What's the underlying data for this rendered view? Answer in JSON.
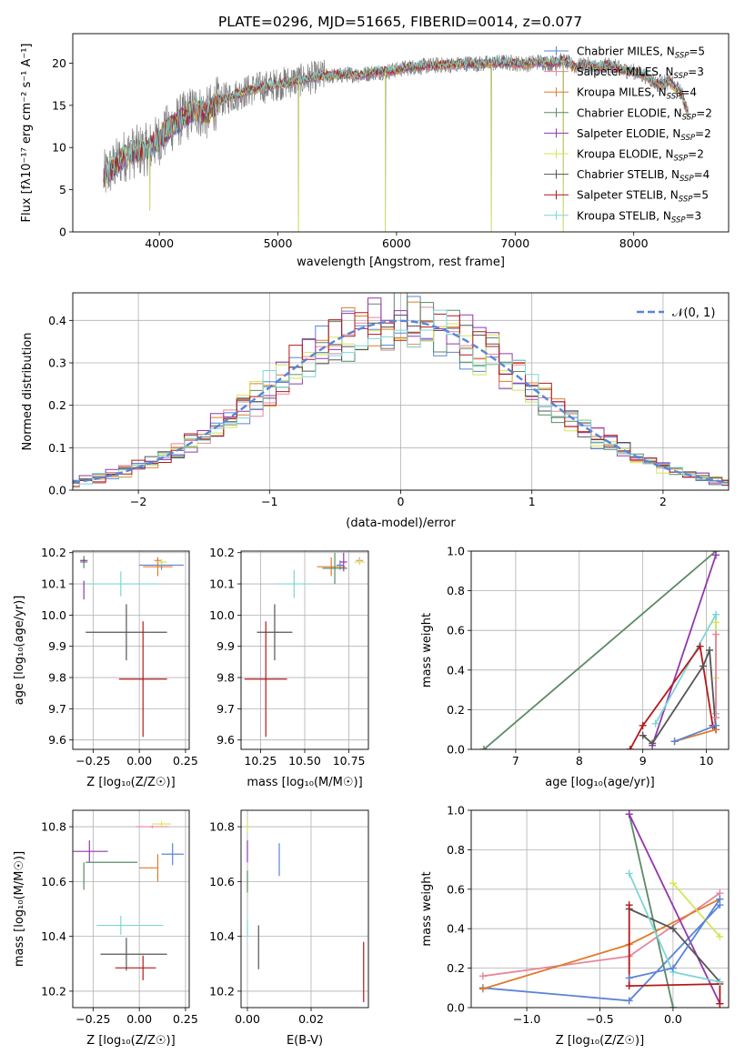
{
  "figure": {
    "title": "PLATE=0296, MJD=51665, FIBERID=0014, z=0.077"
  },
  "colors": {
    "Chabrier MILES": "#5b84d6",
    "Salpeter MILES": "#e5879b",
    "Kroupa MILES": "#e07b2c",
    "Chabrier ELODIE": "#5a8a66",
    "Salpeter ELODIE": "#9437ad",
    "Kroupa ELODIE": "#d4e557",
    "Chabrier STELIB": "#555555",
    "Salpeter STELIB": "#b4191a",
    "Kroupa STELIB": "#7dd6d6",
    "grid": "#b0b0b0",
    "data": "#808080"
  },
  "chart_data": [
    {
      "id": "spectrum",
      "type": "line",
      "xlabel": "wavelength [Angstrom, rest frame]",
      "ylabel": "Flux [fλ10⁻¹⁷ erg cm⁻² s⁻¹ A⁻¹]",
      "xlim": [
        3270,
        8800
      ],
      "ylim": [
        0,
        23.5
      ],
      "xticks": [
        4000,
        5000,
        6000,
        7000,
        8000
      ],
      "yticks": [
        0,
        5,
        10,
        15,
        20
      ],
      "legend_position": "right",
      "legend": [
        {
          "name": "Chabrier MILES",
          "label": "Chabrier MILES, N",
          "sub": "SSP",
          "tail": "=5"
        },
        {
          "name": "Salpeter MILES",
          "label": "Salpeter MILES, N",
          "sub": "SSP",
          "tail": "=3"
        },
        {
          "name": "Kroupa MILES",
          "label": "Kroupa MILES, N",
          "sub": "SSP",
          "tail": "=4"
        },
        {
          "name": "Chabrier ELODIE",
          "label": "Chabrier ELODIE, N",
          "sub": "SSP",
          "tail": "=2"
        },
        {
          "name": "Salpeter ELODIE",
          "label": "Salpeter ELODIE, N",
          "sub": "SSP",
          "tail": "=2"
        },
        {
          "name": "Kroupa ELODIE",
          "label": "Kroupa ELODIE, N",
          "sub": "SSP",
          "tail": "=2"
        },
        {
          "name": "Chabrier STELIB",
          "label": "Chabrier STELIB, N",
          "sub": "SSP",
          "tail": "=4"
        },
        {
          "name": "Salpeter STELIB",
          "label": "Salpeter STELIB, N",
          "sub": "SSP",
          "tail": "=5"
        },
        {
          "name": "Kroupa STELIB",
          "label": "Kroupa STELIB, N",
          "sub": "SSP",
          "tail": "=3"
        }
      ],
      "envelope": {
        "x": [
          3530,
          3600,
          3700,
          3800,
          3900,
          4000,
          4100,
          4200,
          4300,
          4400,
          4500,
          4600,
          4700,
          4800,
          4900,
          5000,
          5100,
          5200,
          5300,
          5400,
          5500,
          5600,
          5700,
          5800,
          5900,
          6000,
          6100,
          6200,
          6300,
          6400,
          6500,
          6600,
          6700,
          6800,
          6900,
          7000,
          7100,
          7200,
          7300,
          7400,
          7500,
          7600,
          7700,
          7800,
          7900,
          8000,
          8100,
          8200,
          8300,
          8400,
          8460
        ],
        "y": [
          6.5,
          7.5,
          9.0,
          9.5,
          9.8,
          11.0,
          12.5,
          13.5,
          14.5,
          14.0,
          15.5,
          16.0,
          16.5,
          17.0,
          17.2,
          17.5,
          17.8,
          18.0,
          18.3,
          18.5,
          18.5,
          18.7,
          18.6,
          18.9,
          19.0,
          19.2,
          19.5,
          19.6,
          19.7,
          19.8,
          19.8,
          20.0,
          19.9,
          20.0,
          20.1,
          20.0,
          19.9,
          20.2,
          20.0,
          20.3,
          19.6,
          19.8,
          19.5,
          19.8,
          19.2,
          19.0,
          18.5,
          17.5,
          17.8,
          16.5,
          14.0
        ]
      },
      "spikes": [
        {
          "x": 3920,
          "y": 2.5
        },
        {
          "x": 5175,
          "y": 0.0
        },
        {
          "x": 5905,
          "y": 0.0
        },
        {
          "x": 6800,
          "y": 0.0
        },
        {
          "x": 7405,
          "y": 0.0
        }
      ]
    },
    {
      "id": "residuals",
      "type": "area",
      "xlabel": "(data-model)/error",
      "ylabel": "Normed distribution",
      "xlim": [
        -2.5,
        2.5
      ],
      "ylim": [
        0,
        0.465
      ],
      "xticks": [
        -2,
        -1,
        0,
        1,
        2
      ],
      "xticklabels": [
        "−2",
        "−1",
        "0",
        "1",
        "2"
      ],
      "yticks": [
        0,
        0.1,
        0.2,
        0.3,
        0.4
      ],
      "yticklabels": [
        "0.0",
        "0.1",
        "0.2",
        "0.3",
        "0.4"
      ],
      "legend_label": "𝒩(0, 1)",
      "legend_position": "top-right",
      "gaussian": {
        "mean": 0,
        "sigma": 1
      }
    },
    {
      "id": "age-vs-Z",
      "type": "scatter",
      "xlabel": "Z [log₁₀(Z/Z☉)]",
      "ylabel": "age  [log₁₀(age/yr)]",
      "xlim": [
        -0.36,
        0.27
      ],
      "ylim": [
        9.57,
        10.205
      ],
      "xticks": [
        -0.25,
        0.0,
        0.25
      ],
      "xticklabels": [
        "−0.25",
        "0.00",
        "0.25"
      ],
      "yticks": [
        9.6,
        9.7,
        9.8,
        9.9,
        10.0,
        10.1,
        10.2
      ],
      "yticklabels": [
        "9.6",
        "9.7",
        "9.8",
        "9.9",
        "10.0",
        "10.1",
        "10.2"
      ],
      "points": [
        {
          "name": "Chabrier MILES",
          "x": 0.12,
          "y": 10.16,
          "xerr": 0.12,
          "yerr": 0.015
        },
        {
          "name": "Salpeter MILES",
          "x": 0.1,
          "y": 10.175,
          "xerr": 0.02,
          "yerr": 0.01
        },
        {
          "name": "Kroupa MILES",
          "x": 0.1,
          "y": 10.155,
          "xerr": 0.08,
          "yerr": 0.03
        },
        {
          "name": "Chabrier ELODIE",
          "x": -0.3,
          "y": 10.17,
          "xerr": 0.02,
          "yerr": 0.02
        },
        {
          "name": "Salpeter ELODIE",
          "x": -0.3,
          "y": 10.175,
          "xerr": 0.02,
          "yerr": 0.005
        },
        {
          "name": "Kroupa ELODIE",
          "x": 0.12,
          "y": 10.17,
          "xerr": 0.03,
          "yerr": 0.01
        },
        {
          "name": "Chabrier STELIB",
          "x": -0.07,
          "y": 9.945,
          "xerr": 0.22,
          "yerr": 0.09
        },
        {
          "name": "Salpeter STELIB",
          "x": 0.02,
          "y": 9.795,
          "xerr": 0.13,
          "yerr": 0.185
        },
        {
          "name": "Kroupa STELIB",
          "x": -0.1,
          "y": 10.1,
          "xerr": 0.2,
          "yerr": 0.04
        },
        {
          "name": "Salpeter ELODIE",
          "x": -0.3,
          "y": 10.08,
          "xerr": 0.0,
          "yerr": 0.03
        },
        {
          "name": "Chabrier MILES",
          "x": 0.05,
          "y": 10.175,
          "xerr": 0.0,
          "yerr": 0.0
        },
        {
          "name": "Chabrier STELIB",
          "x": -0.3,
          "y": 10.175,
          "xerr": 0.0,
          "yerr": 0.0
        },
        {
          "name": "Salpeter STELIB",
          "x": -0.3,
          "y": 10.175,
          "xerr": 0.0,
          "yerr": 0.0
        }
      ]
    },
    {
      "id": "age-vs-mass",
      "type": "scatter",
      "xlabel": "mass [log₁₀(M/M☉)]",
      "xlim": [
        10.14,
        10.86
      ],
      "ylim": [
        9.57,
        10.205
      ],
      "xticks": [
        10.25,
        10.5,
        10.75
      ],
      "xticklabels": [
        "10.25",
        "10.50",
        "10.75"
      ],
      "yticks": [
        9.6,
        9.7,
        9.8,
        9.9,
        10.0,
        10.1,
        10.2
      ],
      "yticklabels": [
        "9.6",
        "9.7",
        "9.8",
        "9.9",
        "10.0",
        "10.1",
        "10.2"
      ],
      "points": [
        {
          "name": "Chabrier MILES",
          "x": 10.7,
          "y": 10.16,
          "xerr": 0.02,
          "yerr": 0.015
        },
        {
          "name": "Salpeter MILES",
          "x": 10.81,
          "y": 10.175,
          "xerr": 0.02,
          "yerr": 0.01
        },
        {
          "name": "Kroupa MILES",
          "x": 10.65,
          "y": 10.155,
          "xerr": 0.08,
          "yerr": 0.03
        },
        {
          "name": "Chabrier ELODIE",
          "x": 10.67,
          "y": 10.15,
          "xerr": 0.07,
          "yerr": 0.05
        },
        {
          "name": "Salpeter ELODIE",
          "x": 10.72,
          "y": 10.17,
          "xerr": 0.02,
          "yerr": 0.03
        },
        {
          "name": "Kroupa ELODIE",
          "x": 10.81,
          "y": 10.17,
          "xerr": 0.03,
          "yerr": 0.01
        },
        {
          "name": "Chabrier STELIB",
          "x": 10.33,
          "y": 9.945,
          "xerr": 0.1,
          "yerr": 0.09
        },
        {
          "name": "Salpeter STELIB",
          "x": 10.28,
          "y": 9.795,
          "xerr": 0.12,
          "yerr": 0.185
        },
        {
          "name": "Kroupa STELIB",
          "x": 10.44,
          "y": 10.1,
          "xerr": 0.1,
          "yerr": 0.045
        }
      ]
    },
    {
      "id": "mass-weight-vs-age",
      "type": "line",
      "xlabel": "age  [log₁₀(age/yr)]",
      "ylabel": "mass weight",
      "xlim": [
        6.3,
        10.35
      ],
      "ylim": [
        0,
        1
      ],
      "xticks": [
        7,
        8,
        9,
        10
      ],
      "yticks": [
        0,
        0.2,
        0.4,
        0.6,
        0.8,
        1.0
      ],
      "yticklabels": [
        "0.0",
        "0.2",
        "0.4",
        "0.6",
        "0.8",
        "1.0"
      ],
      "series": [
        {
          "name": "Chabrier ELODIE",
          "x": [
            6.5,
            10.15
          ],
          "y": [
            0.0,
            1.0
          ]
        },
        {
          "name": "Salpeter ELODIE",
          "x": [
            9.15,
            10.15
          ],
          "y": [
            0.02,
            0.98
          ]
        },
        {
          "name": "Kroupa STELIB",
          "x": [
            9.2,
            10.15,
            10.15
          ],
          "y": [
            0.13,
            0.68,
            0.18
          ]
        },
        {
          "name": "Salpeter STELIB",
          "x": [
            8.8,
            9.0,
            9.9,
            10.1,
            10.15
          ],
          "y": [
            0.0,
            0.12,
            0.52,
            0.12,
            0.1
          ]
        },
        {
          "name": "Chabrier STELIB",
          "x": [
            9.0,
            9.15,
            9.95,
            10.05,
            10.15
          ],
          "y": [
            0.07,
            0.03,
            0.42,
            0.5,
            0.1
          ]
        },
        {
          "name": "Kroupa MILES",
          "x": [
            9.5,
            10.15
          ],
          "y": [
            0.04,
            0.1
          ]
        },
        {
          "name": "Chabrier MILES",
          "x": [
            9.5,
            10.15
          ],
          "y": [
            0.04,
            0.12
          ]
        },
        {
          "name": "Kroupa ELODIE",
          "x": [
            10.15,
            10.15
          ],
          "y": [
            0.64,
            0.36
          ]
        },
        {
          "name": "Salpeter MILES",
          "x": [
            10.15,
            10.15
          ],
          "y": [
            0.58,
            0.16
          ]
        }
      ]
    },
    {
      "id": "mass-vs-Z",
      "type": "scatter",
      "xlabel": "Z [log₁₀(Z/Z☉)]",
      "ylabel": "mass [log₁₀(M/M☉)]",
      "xlim": [
        -0.36,
        0.27
      ],
      "ylim": [
        10.14,
        10.86
      ],
      "xticks": [
        -0.25,
        0.0,
        0.25
      ],
      "xticklabels": [
        "−0.25",
        "0.00",
        "0.25"
      ],
      "yticks": [
        10.2,
        10.4,
        10.6,
        10.8
      ],
      "yticklabels": [
        "10.2",
        "10.4",
        "10.6",
        "10.8"
      ],
      "points": [
        {
          "name": "Salpeter MILES",
          "x": 0.07,
          "y": 10.8,
          "xerr": 0.09,
          "yerr": 0.005
        },
        {
          "name": "Kroupa ELODIE",
          "x": 0.12,
          "y": 10.81,
          "xerr": 0.05,
          "yerr": 0.01
        },
        {
          "name": "Salpeter ELODIE",
          "x": -0.27,
          "y": 10.71,
          "xerr": 0.1,
          "yerr": 0.04
        },
        {
          "name": "Chabrier MILES",
          "x": 0.18,
          "y": 10.7,
          "xerr": 0.06,
          "yerr": 0.04
        },
        {
          "name": "Chabrier ELODIE",
          "x": -0.15,
          "y": 10.67,
          "xerr": 0.14,
          "yerr": 0.0
        },
        {
          "name": "Chabrier ELODIE",
          "x": -0.3,
          "y": 10.62,
          "xerr": 0.0,
          "yerr": 0.05
        },
        {
          "name": "Kroupa MILES",
          "x": 0.05,
          "y": 10.65,
          "xerr": 0.05,
          "yerr": 0.0
        },
        {
          "name": "Kroupa MILES",
          "x": 0.1,
          "y": 10.65,
          "xerr": 0.0,
          "yerr": 0.05
        },
        {
          "name": "Kroupa STELIB",
          "x": -0.05,
          "y": 10.44,
          "xerr": 0.18,
          "yerr": 0.0
        },
        {
          "name": "Kroupa STELIB",
          "x": -0.1,
          "y": 10.44,
          "xerr": 0.0,
          "yerr": 0.035
        },
        {
          "name": "Chabrier STELIB",
          "x": -0.03,
          "y": 10.335,
          "xerr": 0.18,
          "yerr": 0.0
        },
        {
          "name": "Chabrier STELIB",
          "x": -0.07,
          "y": 10.335,
          "xerr": 0.0,
          "yerr": 0.06
        },
        {
          "name": "Salpeter STELIB",
          "x": -0.02,
          "y": 10.285,
          "xerr": 0.11,
          "yerr": 0.0
        },
        {
          "name": "Salpeter STELIB",
          "x": 0.02,
          "y": 10.285,
          "xerr": 0.0,
          "yerr": 0.045
        }
      ]
    },
    {
      "id": "mass-vs-EBV",
      "type": "scatter",
      "xlabel": "E(B-V)",
      "xlim": [
        -0.002,
        0.038
      ],
      "ylim": [
        10.14,
        10.86
      ],
      "xticks": [
        0,
        0.02
      ],
      "xticklabels": [
        "0.00",
        "0.02"
      ],
      "yticks": [
        10.2,
        10.4,
        10.6,
        10.8
      ],
      "yticklabels": [
        "10.2",
        "10.4",
        "10.6",
        "10.8"
      ],
      "points": [
        {
          "name": "Kroupa ELODIE",
          "x": 0.0,
          "y": 10.8,
          "xerr": 0.0,
          "yerr": 0.02
        },
        {
          "name": "Salpeter ELODIE",
          "x": 0.0,
          "y": 10.71,
          "xerr": 0.0,
          "yerr": 0.04
        },
        {
          "name": "Chabrier ELODIE",
          "x": 0.0,
          "y": 10.6,
          "xerr": 0.0,
          "yerr": 0.04
        },
        {
          "name": "Kroupa STELIB",
          "x": 0.0,
          "y": 10.43,
          "xerr": 0.0,
          "yerr": 0.03
        },
        {
          "name": "Chabrier MILES",
          "x": 0.01,
          "y": 10.68,
          "xerr": 0.0,
          "yerr": 0.06
        },
        {
          "name": "Chabrier STELIB",
          "x": 0.0035,
          "y": 10.36,
          "xerr": 0.0,
          "yerr": 0.08
        },
        {
          "name": "Salpeter STELIB",
          "x": 0.0365,
          "y": 10.27,
          "xerr": 0.0,
          "yerr": 0.11
        }
      ]
    },
    {
      "id": "mass-weight-vs-Z",
      "type": "line",
      "xlabel": "Z [log₁₀(Z/Z☉)]",
      "ylabel": "mass weight",
      "xlim": [
        -1.38,
        0.38
      ],
      "ylim": [
        0,
        1
      ],
      "xticks": [
        -1.0,
        -0.5,
        0.0
      ],
      "xticklabels": [
        "−1.0",
        "−0.5",
        "0.0"
      ],
      "yticks": [
        0,
        0.2,
        0.4,
        0.6,
        0.8,
        1.0
      ],
      "yticklabels": [
        "0.0",
        "0.2",
        "0.4",
        "0.6",
        "0.8",
        "1.0"
      ],
      "series": [
        {
          "name": "Chabrier MILES",
          "x": [
            -1.3,
            -0.3,
            0.32
          ],
          "y": [
            0.1,
            0.035,
            0.52
          ]
        },
        {
          "name": "Salpeter MILES",
          "x": [
            -1.3,
            -0.3,
            0.32
          ],
          "y": [
            0.16,
            0.26,
            0.58
          ]
        },
        {
          "name": "Kroupa MILES",
          "x": [
            -1.3,
            -0.3,
            0.32
          ],
          "y": [
            0.095,
            0.32,
            0.55
          ]
        },
        {
          "name": "Chabrier ELODIE",
          "x": [
            -0.3,
            0.0
          ],
          "y": [
            0.98,
            0.0
          ]
        },
        {
          "name": "Salpeter ELODIE",
          "x": [
            -0.3,
            0.32
          ],
          "y": [
            0.98,
            0.02
          ]
        },
        {
          "name": "Kroupa ELODIE",
          "x": [
            0.0,
            0.32
          ],
          "y": [
            0.63,
            0.36
          ]
        },
        {
          "name": "Chabrier STELIB",
          "x": [
            -0.3,
            0.0,
            0.32
          ],
          "y": [
            0.5,
            0.4,
            0.13
          ]
        },
        {
          "name": "Salpeter STELIB",
          "x": [
            -0.3,
            -0.3,
            0.32,
            0.32
          ],
          "y": [
            0.52,
            0.11,
            0.12,
            0.02
          ]
        },
        {
          "name": "Kroupa STELIB",
          "x": [
            -0.3,
            0.0,
            0.32
          ],
          "y": [
            0.68,
            0.18,
            0.13
          ]
        },
        {
          "name": "Chabrier MILES",
          "x": [
            -0.3,
            0.0,
            0.32
          ],
          "y": [
            0.15,
            0.2,
            0.55
          ]
        }
      ]
    }
  ]
}
